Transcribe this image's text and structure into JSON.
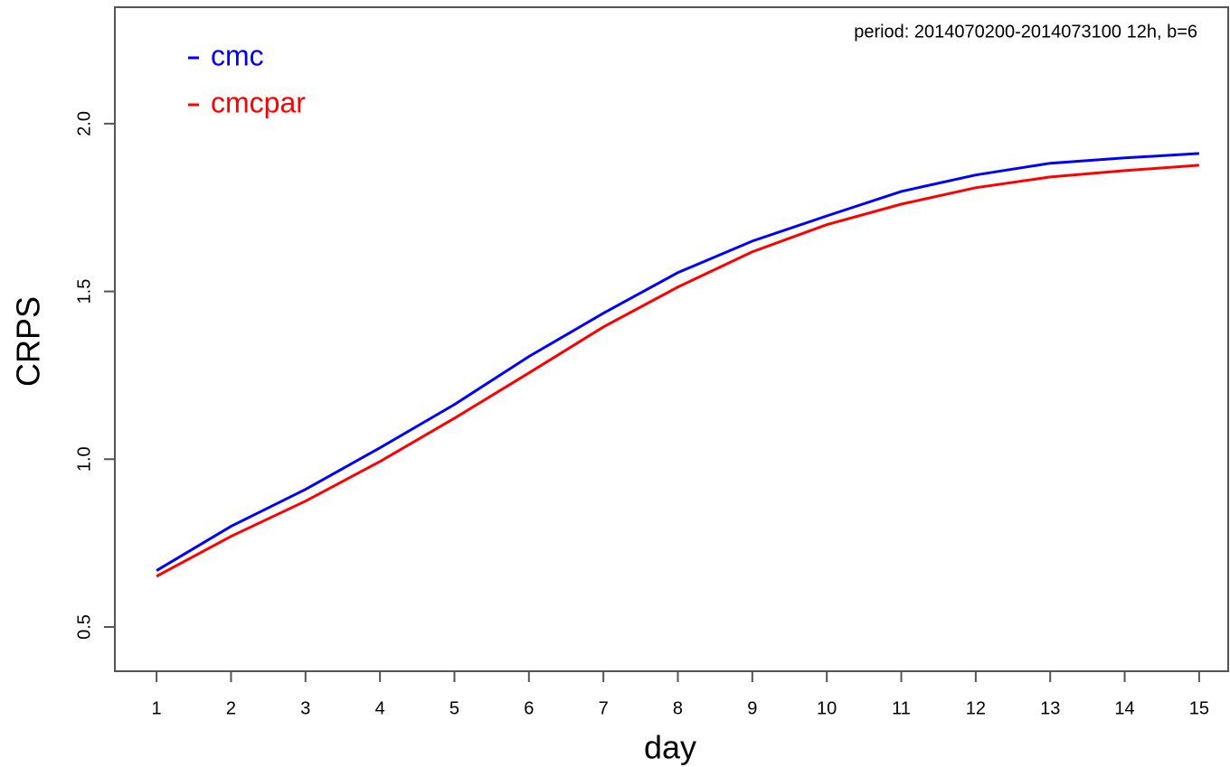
{
  "chart_data": {
    "type": "line",
    "xlabel": "day",
    "ylabel": "CRPS",
    "annotation": "period: 2014070200-2014073100 12h, b=6",
    "x": [
      1,
      2,
      3,
      4,
      5,
      6,
      7,
      8,
      9,
      10,
      11,
      12,
      13,
      14,
      15
    ],
    "series": [
      {
        "name": "cmc",
        "color": "#0000ff",
        "values": [
          0.668,
          0.8,
          0.91,
          1.034,
          1.163,
          1.306,
          1.435,
          1.556,
          1.65,
          1.725,
          1.798,
          1.847,
          1.882,
          1.898,
          1.911
        ]
      },
      {
        "name": "cmcpar",
        "color": "#ff0000",
        "values": [
          0.651,
          0.77,
          0.875,
          0.993,
          1.122,
          1.257,
          1.394,
          1.513,
          1.618,
          1.699,
          1.76,
          1.809,
          1.841,
          1.86,
          1.876
        ]
      }
    ],
    "xlim": [
      0.44,
      15.39
    ],
    "ylim": [
      0.368,
      2.347
    ],
    "xticks": [
      1,
      2,
      3,
      4,
      5,
      6,
      7,
      8,
      9,
      10,
      11,
      12,
      13,
      14,
      15
    ],
    "yticks": [
      0.5,
      {
        "value": 1.0,
        "label": "1.0"
      },
      1.5,
      {
        "value": 2.0,
        "label": "2.0"
      }
    ],
    "grid": false,
    "legend": "top-left"
  }
}
